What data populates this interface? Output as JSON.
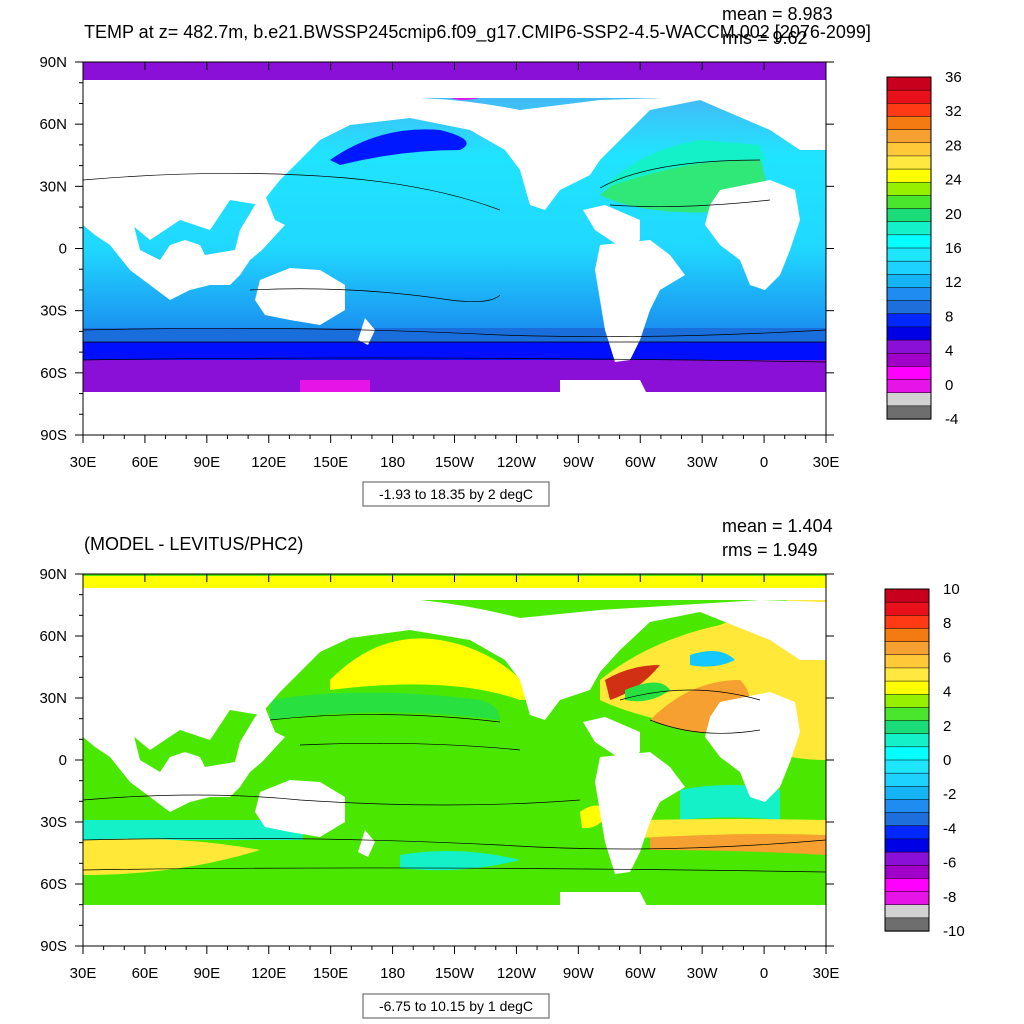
{
  "panels": [
    {
      "title": "TEMP at z= 482.7m, b.e21.BWSSP245cmip6.f09_g17.CMIP6-SSP2-4.5-WACCM.002 [2076-2099]",
      "mean_text": "mean = 8.983",
      "rms_text": "rms = 9.62",
      "range_text": "-1.93 to 18.35 by 2 degC"
    },
    {
      "title": "(MODEL - LEVITUS/PHC2)",
      "mean_text": "mean = 1.404",
      "rms_text": "rms = 1.949",
      "range_text": "-6.75 to 10.15 by 1 degC"
    }
  ],
  "chart_data": [
    {
      "type": "heatmap",
      "title": "TEMP at z= 482.7m, b.e21.BWSSP245cmip6.f09_g17.CMIP6-SSP2-4.5-WACCM.002 [2076-2099]",
      "stats": {
        "mean": 8.983,
        "rms": 9.62
      },
      "units": "degC",
      "x_ticks": [
        "30E",
        "60E",
        "90E",
        "120E",
        "150E",
        "180",
        "150W",
        "120W",
        "90W",
        "60W",
        "30W",
        "0",
        "30E"
      ],
      "y_ticks": [
        "90N",
        "60N",
        "30N",
        "0",
        "30S",
        "60S",
        "90S"
      ],
      "colorbar_labels": [
        "36",
        "32",
        "28",
        "24",
        "20",
        "16",
        "12",
        "8",
        "4",
        "0",
        "-4"
      ],
      "colorbar_colors": [
        "#c8001e",
        "#e8101a",
        "#ff3a14",
        "#f47a12",
        "#f5a030",
        "#ffc838",
        "#ffe840",
        "#ffff00",
        "#96f000",
        "#4ae62e",
        "#1adc78",
        "#14f0c8",
        "#00ffff",
        "#1ee6ff",
        "#1ed2ff",
        "#14b4f5",
        "#1e8cf0",
        "#1e6edc",
        "#0028ff",
        "#0000e6",
        "#8a10d8",
        "#a000c8",
        "#ff00ff",
        "#e614e6",
        "#d2d2d2",
        "#6e6e6e"
      ],
      "contour_range": "-1.93 to 18.35 by 2 degC",
      "grid": false
    },
    {
      "type": "heatmap",
      "title": "(MODEL - LEVITUS/PHC2)",
      "stats": {
        "mean": 1.404,
        "rms": 1.949
      },
      "units": "degC",
      "x_ticks": [
        "30E",
        "60E",
        "90E",
        "120E",
        "150E",
        "180",
        "150W",
        "120W",
        "90W",
        "60W",
        "30W",
        "0",
        "30E"
      ],
      "y_ticks": [
        "90N",
        "60N",
        "30N",
        "0",
        "30S",
        "60S",
        "90S"
      ],
      "colorbar_labels": [
        "10",
        "8",
        "6",
        "4",
        "2",
        "0",
        "-2",
        "-4",
        "-6",
        "-8",
        "-10"
      ],
      "colorbar_colors": [
        "#c8001e",
        "#e8101a",
        "#ff3a14",
        "#f47a12",
        "#f5a030",
        "#ffc838",
        "#ffe840",
        "#ffff00",
        "#96f000",
        "#4ae62e",
        "#1adc78",
        "#14f0c8",
        "#00ffff",
        "#1ee6ff",
        "#1ed2ff",
        "#14b4f5",
        "#1e8cf0",
        "#1e6edc",
        "#0028ff",
        "#0000e6",
        "#8a10d8",
        "#a000c8",
        "#ff00ff",
        "#e614e6",
        "#d2d2d2",
        "#6e6e6e"
      ],
      "contour_range": "-6.75 to 10.15 by 1 degC",
      "grid": false
    }
  ]
}
